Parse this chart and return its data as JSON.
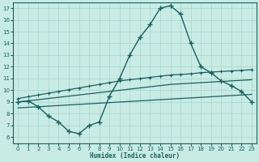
{
  "xlabel": "Humidex (Indice chaleur)",
  "bg_color": "#c8ece4",
  "line_color": "#1a6060",
  "grid_color": "#a8d4cc",
  "xlim": [
    -0.5,
    23.5
  ],
  "ylim": [
    5.5,
    17.5
  ],
  "xticks": [
    0,
    1,
    2,
    3,
    4,
    5,
    6,
    7,
    8,
    9,
    10,
    11,
    12,
    13,
    14,
    15,
    16,
    17,
    18,
    19,
    20,
    21,
    22,
    23
  ],
  "yticks": [
    6,
    7,
    8,
    9,
    10,
    11,
    12,
    13,
    14,
    15,
    16,
    17
  ],
  "curve_main_x": [
    0,
    1,
    2,
    3,
    4,
    5,
    6,
    7,
    8,
    9,
    10,
    11,
    12,
    13,
    14,
    15,
    16,
    17,
    18,
    19,
    20,
    21,
    22,
    23
  ],
  "curve_main_y": [
    9.0,
    9.1,
    8.6,
    7.8,
    7.3,
    6.5,
    6.3,
    7.0,
    7.3,
    9.5,
    11.0,
    13.0,
    14.5,
    15.6,
    17.0,
    17.2,
    16.5,
    14.0,
    12.0,
    11.5,
    10.8,
    10.4,
    9.9,
    9.0
  ],
  "line_upper_x": [
    0,
    1,
    2,
    3,
    4,
    5,
    6,
    7,
    8,
    9,
    10,
    11,
    12,
    13,
    14,
    15,
    16,
    17,
    18,
    19,
    20,
    21,
    22,
    23
  ],
  "line_upper_y": [
    9.3,
    9.45,
    9.6,
    9.75,
    9.9,
    10.05,
    10.2,
    10.35,
    10.5,
    10.65,
    10.8,
    10.9,
    11.0,
    11.1,
    11.2,
    11.3,
    11.35,
    11.4,
    11.5,
    11.55,
    11.6,
    11.65,
    11.7,
    11.75
  ],
  "line_mid_x": [
    0,
    1,
    2,
    3,
    4,
    5,
    6,
    7,
    8,
    9,
    10,
    11,
    12,
    13,
    14,
    15,
    16,
    17,
    18,
    19,
    20,
    21,
    22,
    23
  ],
  "line_mid_y": [
    9.0,
    9.1,
    9.2,
    9.3,
    9.4,
    9.5,
    9.6,
    9.7,
    9.8,
    9.9,
    10.0,
    10.1,
    10.2,
    10.3,
    10.4,
    10.5,
    10.55,
    10.6,
    10.65,
    10.7,
    10.75,
    10.8,
    10.85,
    10.9
  ],
  "line_lower_x": [
    0,
    1,
    2,
    3,
    4,
    5,
    6,
    7,
    8,
    9,
    10,
    11,
    12,
    13,
    14,
    15,
    16,
    17,
    18,
    19,
    20,
    21,
    22,
    23
  ],
  "line_lower_y": [
    8.5,
    8.55,
    8.6,
    8.65,
    8.7,
    8.75,
    8.8,
    8.85,
    8.9,
    8.95,
    9.0,
    9.05,
    9.1,
    9.15,
    9.2,
    9.25,
    9.3,
    9.35,
    9.4,
    9.45,
    9.5,
    9.55,
    9.6,
    9.65
  ]
}
